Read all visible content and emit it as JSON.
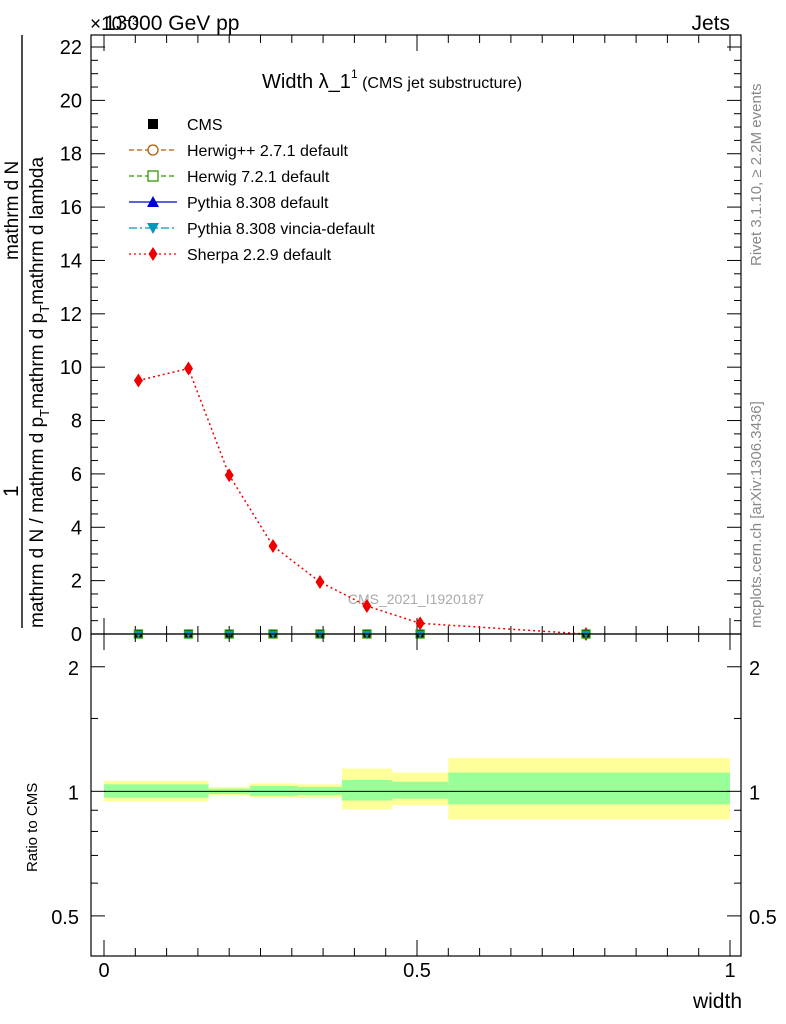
{
  "header": {
    "left": "13000 GeV pp",
    "right": "Jets",
    "exponent": "×10⁻³"
  },
  "side_labels": {
    "rivet": "Rivet 3.1.10, ≥ 2.2M events",
    "mcplots": "mcplots.cern.ch [arXiv:1306.3436]"
  },
  "watermark": "CMS_2021_I1920187",
  "chart_data": [
    {
      "type": "line",
      "title": "Width λ_1¹ (CMS jet substructure)",
      "title_main": "Width λ_1",
      "title_sup": "1",
      "title_rest": " (CMS jet substructure)",
      "ylabel_numerator": "mathrm dN",
      "ylabel_denominator": "mathrm d p_T mathrm d lambda",
      "ylabel_prefix": "1",
      "ylabel_prefix_den": "mathrm d N / mathrm d p_T",
      "ylabel_top_full": "mathrm dN",
      "ylabel_mid_full": "mathrm d p_T mathrm d lambda",
      "ylabel_denominator_full": "mathrm d N / mathrm d p_T mathrm d p_T mathrm d lambda",
      "ylabel_parts": [
        "1",
        "mathrm d N / mathrm d p",
        "T",
        "mathrm d p",
        "T",
        "mathrm d lambda",
        "mathrm d N"
      ],
      "y_tick_labels": [
        "0",
        "2",
        "4",
        "6",
        "8",
        "10",
        "12",
        "14",
        "16",
        "18",
        "20",
        "22"
      ],
      "ylim": [
        0,
        22.4
      ],
      "y_unit_scale": "1e-3",
      "x_tick_labels": [
        "0",
        "0.5",
        "1"
      ],
      "xlim": [
        0,
        1
      ],
      "legend_position": "top-left",
      "legend": [
        {
          "name": "CMS",
          "color": "#000000",
          "marker": "square-filled",
          "line": "none"
        },
        {
          "name": "Herwig++ 2.7.1 default",
          "color": "#b05a00",
          "marker": "circle-open",
          "line": "dashed"
        },
        {
          "name": "Herwig 7.2.1 default",
          "color": "#339900",
          "marker": "square-open",
          "line": "dashed"
        },
        {
          "name": "Pythia 8.308 default",
          "color": "#0000cc",
          "marker": "triangle-up",
          "line": "solid"
        },
        {
          "name": "Pythia 8.308 vincia-default",
          "color": "#0099bb",
          "marker": "triangle-down",
          "line": "dashdot"
        },
        {
          "name": "Sherpa 2.2.9 default",
          "color": "#ee0000",
          "marker": "diamond",
          "line": "dotted"
        }
      ],
      "x": [
        0.055,
        0.135,
        0.2,
        0.27,
        0.345,
        0.42,
        0.505,
        0.77
      ],
      "series": [
        {
          "name": "CMS",
          "values": [
            0.0,
            0.0,
            0.0,
            0.0,
            0.0,
            0.0,
            0.0,
            0.0
          ]
        },
        {
          "name": "Sherpa 2.2.9 default",
          "values": [
            9.5,
            9.95,
            5.95,
            3.3,
            1.95,
            1.05,
            0.4,
            0.0
          ]
        }
      ]
    },
    {
      "type": "area",
      "ylabel": "Ratio to CMS",
      "y_scale": "log",
      "ylim": [
        0.4,
        2.4
      ],
      "y_tick_values": [
        0.5,
        1,
        2
      ],
      "y_tick_labels": [
        "0.5",
        "1",
        "2"
      ],
      "xlabel": "width",
      "x_tick_labels": [
        "0",
        "0.5",
        "1"
      ],
      "xlim": [
        0,
        1
      ],
      "bins": [
        {
          "lo": 0.0,
          "hi": 0.167,
          "yellow": [
            0.945,
            1.06
          ],
          "green": [
            0.965,
            1.04
          ]
        },
        {
          "lo": 0.167,
          "hi": 0.233,
          "yellow": [
            0.975,
            1.025
          ],
          "green": [
            0.985,
            1.015
          ]
        },
        {
          "lo": 0.233,
          "hi": 0.31,
          "yellow": [
            0.965,
            1.045
          ],
          "green": [
            0.975,
            1.03
          ]
        },
        {
          "lo": 0.31,
          "hi": 0.38,
          "yellow": [
            0.965,
            1.04
          ],
          "green": [
            0.98,
            1.025
          ]
        },
        {
          "lo": 0.38,
          "hi": 0.46,
          "yellow": [
            0.905,
            1.135
          ],
          "green": [
            0.95,
            1.065
          ]
        },
        {
          "lo": 0.46,
          "hi": 0.55,
          "yellow": [
            0.925,
            1.11
          ],
          "green": [
            0.96,
            1.055
          ]
        },
        {
          "lo": 0.55,
          "hi": 1.0,
          "yellow": [
            0.855,
            1.205
          ],
          "green": [
            0.93,
            1.11
          ]
        }
      ],
      "reference": 1
    }
  ]
}
